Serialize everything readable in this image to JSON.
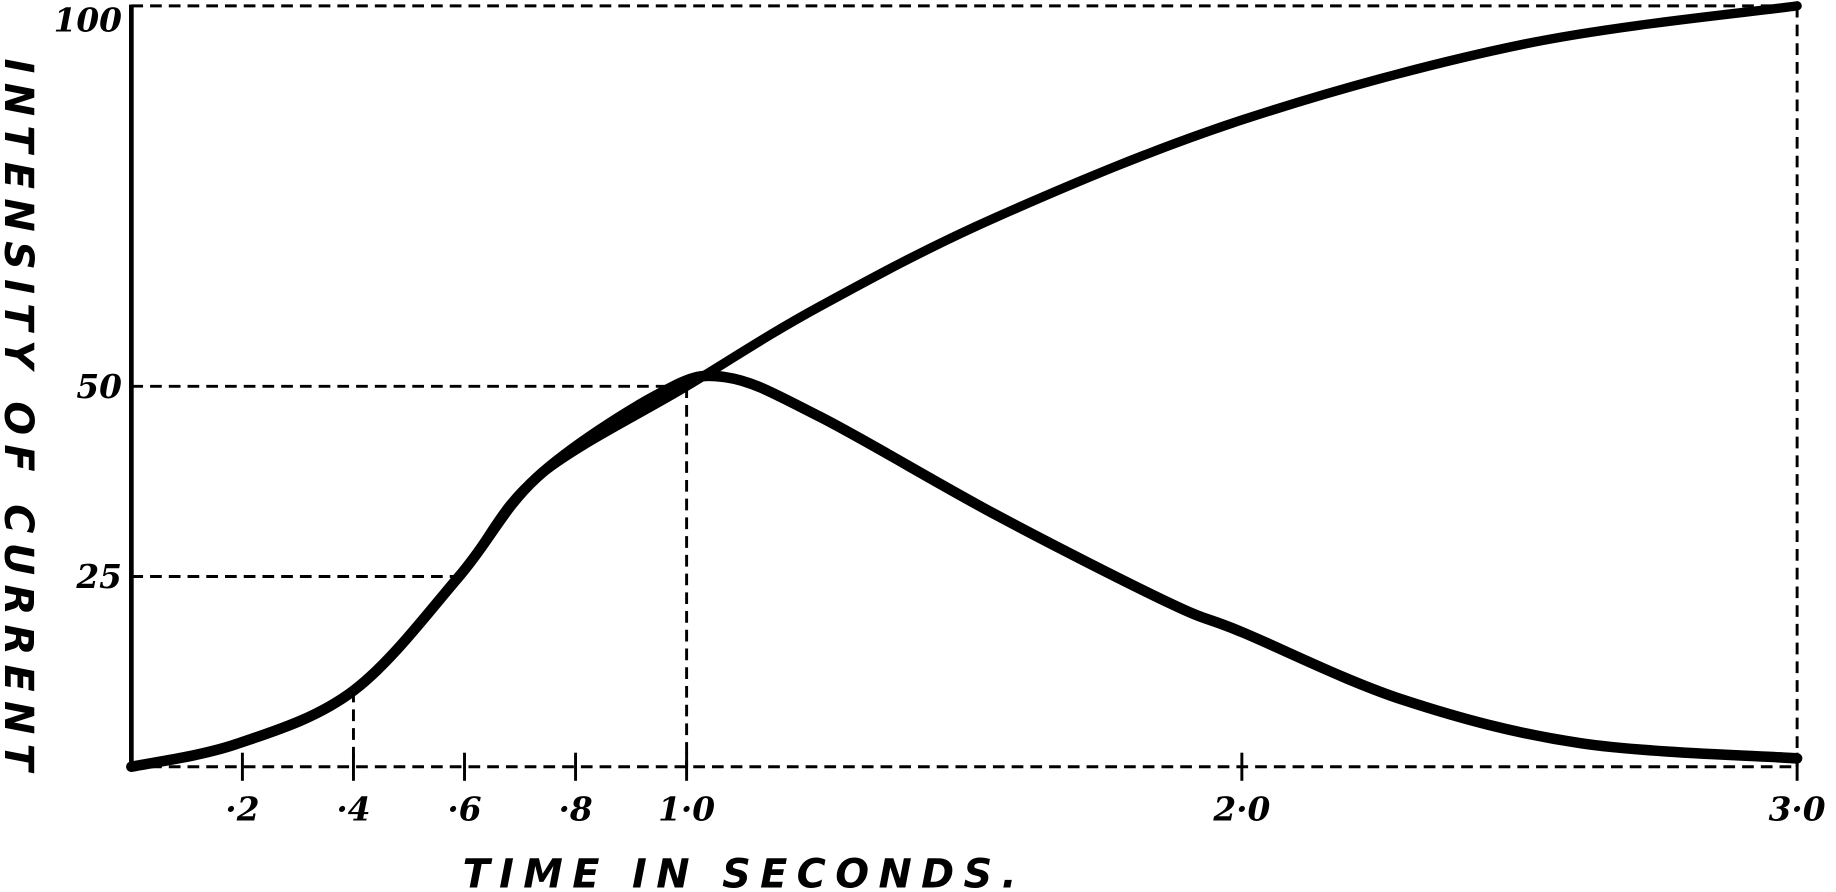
{
  "chart_data": {
    "type": "line",
    "title": "",
    "xlabel": "TIME IN SECONDS.",
    "ylabel": "INTENSITY OF CURRENT",
    "xlim": [
      0,
      3.0
    ],
    "ylim": [
      0,
      100
    ],
    "x_ticks": [
      {
        "value": 0.2,
        "label": "·2"
      },
      {
        "value": 0.4,
        "label": "·4"
      },
      {
        "value": 0.6,
        "label": "·6"
      },
      {
        "value": 0.8,
        "label": "·8"
      },
      {
        "value": 1.0,
        "label": "1·0"
      },
      {
        "value": 2.0,
        "label": "2·0"
      },
      {
        "value": 3.0,
        "label": "3·0"
      }
    ],
    "y_ticks": [
      {
        "value": 25,
        "label": "25"
      },
      {
        "value": 50,
        "label": "50"
      },
      {
        "value": 100,
        "label": "100"
      }
    ],
    "grid": false,
    "reference_lines": [
      {
        "type": "horizontal",
        "y": 50,
        "x_range": [
          0,
          1.0
        ]
      },
      {
        "type": "horizontal",
        "y": 25,
        "x_range": [
          0,
          0.58
        ]
      },
      {
        "type": "vertical",
        "x": 1.0,
        "y_range": [
          0,
          50
        ]
      },
      {
        "type": "vertical",
        "x": 0.4,
        "y_range": [
          0,
          10
        ]
      }
    ],
    "series": [
      {
        "x": [
          0,
          0.19,
          0.4,
          0.59,
          0.73,
          1.0,
          1.24,
          1.56,
          2.0,
          2.51,
          3.0
        ],
        "y": [
          0,
          3,
          10,
          25,
          38,
          50,
          60.5,
          72.3,
          85,
          95,
          100
        ]
      },
      {
        "x": [
          0,
          0.19,
          0.4,
          0.59,
          0.73,
          0.95,
          1.07,
          1.24,
          1.56,
          1.87,
          2.0,
          2.29,
          2.61,
          3.0
        ],
        "y": [
          0,
          3,
          10,
          25,
          38,
          49,
          51.2,
          46,
          33,
          21.5,
          17.7,
          8.8,
          3.1,
          1.1
        ]
      }
    ]
  }
}
